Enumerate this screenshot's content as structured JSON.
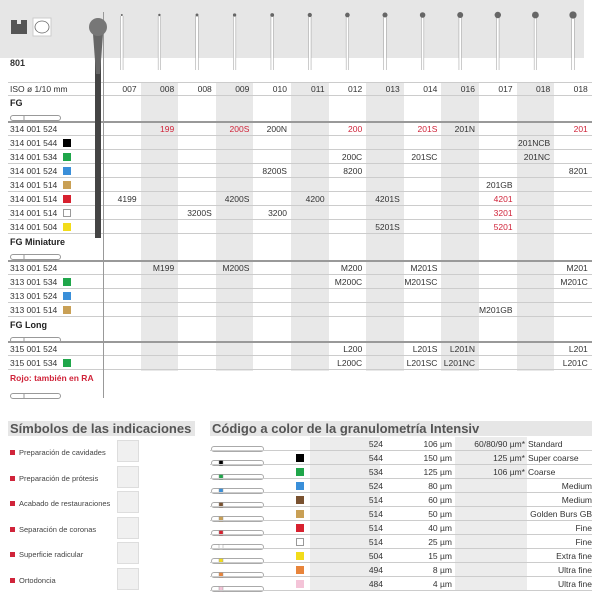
{
  "product": {
    "number": "801",
    "iso_label": "ISO ø 1/10 mm"
  },
  "header_icons": [
    "tooth-cavity-icon",
    "restoration-finishing-icon"
  ],
  "iso_sizes": [
    "007",
    "008",
    "008",
    "009",
    "010",
    "011",
    "012",
    "013",
    "014",
    "016",
    "017",
    "018",
    "018"
  ],
  "sections": [
    {
      "title": "FG",
      "rows": [
        {
          "ref": "314 001 524",
          "color": null,
          "cells": [
            "",
            "199",
            "",
            "200S",
            "200N",
            "",
            "200",
            "",
            "201S",
            "201N",
            "",
            "",
            "201"
          ],
          "red_cells": [
            "199",
            "200S",
            "200",
            "201S",
            "201"
          ]
        },
        {
          "ref": "314 001 544",
          "color": "#000000",
          "cells": [
            "",
            "",
            "",
            "",
            "",
            "",
            "",
            "",
            "",
            "",
            "",
            "201NCB",
            ""
          ],
          "red_cells": []
        },
        {
          "ref": "314 001 534",
          "color": "#1fa64a",
          "cells": [
            "",
            "",
            "",
            "",
            "",
            "",
            "200C",
            "",
            "201SC",
            "",
            "",
            "201NC",
            ""
          ],
          "red_cells": []
        },
        {
          "ref": "314 001 524",
          "color": "#3a8fd9",
          "cells": [
            "",
            "",
            "",
            "",
            "8200S",
            "",
            "8200",
            "",
            "",
            "",
            "",
            "",
            "8201"
          ],
          "red_cells": []
        },
        {
          "ref": "314 001 514",
          "color": "#c9a055",
          "cells": [
            "",
            "",
            "",
            "",
            "",
            "",
            "",
            "",
            "",
            "",
            "201GB",
            "",
            ""
          ],
          "red_cells": []
        },
        {
          "ref": "314 001 514",
          "color": "#d7212f",
          "cells": [
            "4199",
            "",
            "",
            "4200S",
            "",
            "4200",
            "",
            "4201S",
            "",
            "",
            "4201",
            "",
            ""
          ],
          "red_cells": [
            "4201"
          ]
        },
        {
          "ref": "314 001 514",
          "color": "#ffffff",
          "cells": [
            "",
            "",
            "3200S",
            "",
            "3200",
            "",
            "",
            "",
            "",
            "",
            "3201",
            "",
            ""
          ],
          "red_cells": [
            "3201"
          ]
        },
        {
          "ref": "314 001 504",
          "color": "#f2dc1a",
          "cells": [
            "",
            "",
            "",
            "",
            "",
            "",
            "",
            "5201S",
            "",
            "",
            "5201",
            "",
            ""
          ],
          "red_cells": [
            "5201"
          ]
        }
      ]
    },
    {
      "title": "FG Miniature",
      "rows": [
        {
          "ref": "313 001 524",
          "color": null,
          "cells": [
            "",
            "M199",
            "",
            "M200S",
            "",
            "",
            "M200",
            "",
            "M201S",
            "",
            "",
            "",
            "M201"
          ],
          "red_cells": []
        },
        {
          "ref": "313 001 534",
          "color": "#1fa64a",
          "cells": [
            "",
            "",
            "",
            "",
            "",
            "",
            "M200C",
            "",
            "M201SC",
            "",
            "",
            "",
            "M201C"
          ],
          "red_cells": []
        },
        {
          "ref": "313 001 524",
          "color": "#3a8fd9",
          "cells": [
            "",
            "",
            "",
            "",
            "",
            "",
            "",
            "",
            "",
            "",
            "",
            "",
            ""
          ],
          "red_cells": []
        },
        {
          "ref": "313 001 514",
          "color": "#c9a055",
          "cells": [
            "",
            "",
            "",
            "",
            "",
            "",
            "",
            "",
            "",
            "",
            "M201GB",
            "",
            ""
          ],
          "red_cells": []
        }
      ]
    },
    {
      "title": "FG Long",
      "rows": [
        {
          "ref": "315 001 524",
          "color": null,
          "cells": [
            "",
            "",
            "",
            "",
            "",
            "",
            "L200",
            "",
            "L201S",
            "L201N",
            "",
            "",
            "L201"
          ],
          "red_cells": []
        },
        {
          "ref": "315 001 534",
          "color": "#1fa64a",
          "cells": [
            "",
            "",
            "",
            "",
            "",
            "",
            "L200C",
            "",
            "L201SC",
            "L201NC",
            "",
            "",
            "L201C"
          ],
          "red_cells": []
        }
      ]
    }
  ],
  "note": "Rojo: también en RA",
  "indications": {
    "title": "Símbolos de las indicaciones",
    "items": [
      {
        "label": "Preparación de cavidades",
        "icon": "cavity-preparation-icon"
      },
      {
        "label": "Preparación de prótesis",
        "icon": "prosthesis-preparation-icon"
      },
      {
        "label": "Acabado de restauraciones",
        "icon": "restoration-finishing-icon"
      },
      {
        "label": "Separación de coronas",
        "icon": "crown-separation-icon"
      },
      {
        "label": "Superficie radicular",
        "icon": "root-surface-icon"
      },
      {
        "label": "Ortodoncia",
        "icon": "orthodontics-icon"
      }
    ]
  },
  "color_code": {
    "title": "Código a color de la granulometría Intensiv",
    "rows": [
      {
        "color": null,
        "code": "524",
        "grit": "106 µm",
        "alt": "60/80/90 µm*",
        "name": "Standard"
      },
      {
        "color": "#000000",
        "code": "544",
        "grit": "150 µm",
        "alt": "125 µm*",
        "name": "Super coarse"
      },
      {
        "color": "#1fa64a",
        "code": "534",
        "grit": "125 µm",
        "alt": "106 µm*",
        "name": "Coarse"
      },
      {
        "color": "#3a8fd9",
        "code": "524",
        "grit": "80 µm",
        "alt": "",
        "name": "Medium"
      },
      {
        "color": "#7a5230",
        "code": "514",
        "grit": "60 µm",
        "alt": "",
        "name": "Medium"
      },
      {
        "color": "#c9a055",
        "code": "514",
        "grit": "50 µm",
        "alt": "",
        "name": "Golden Burs GB"
      },
      {
        "color": "#d7212f",
        "code": "514",
        "grit": "40 µm",
        "alt": "",
        "name": "Fine"
      },
      {
        "color": "#ffffff",
        "code": "514",
        "grit": "25 µm",
        "alt": "",
        "name": "Fine"
      },
      {
        "color": "#f2dc1a",
        "code": "504",
        "grit": "15 µm",
        "alt": "",
        "name": "Extra fine"
      },
      {
        "color": "#e8843a",
        "code": "494",
        "grit": "8 µm",
        "alt": "",
        "name": "Ultra fine"
      },
      {
        "color": "#f4c4d8",
        "code": "484",
        "grit": "4 µm",
        "alt": "",
        "name": "Ultra fine"
      }
    ]
  },
  "colors": {
    "accent_red": "#d0243a",
    "header_gray": "#e6e6e6"
  }
}
